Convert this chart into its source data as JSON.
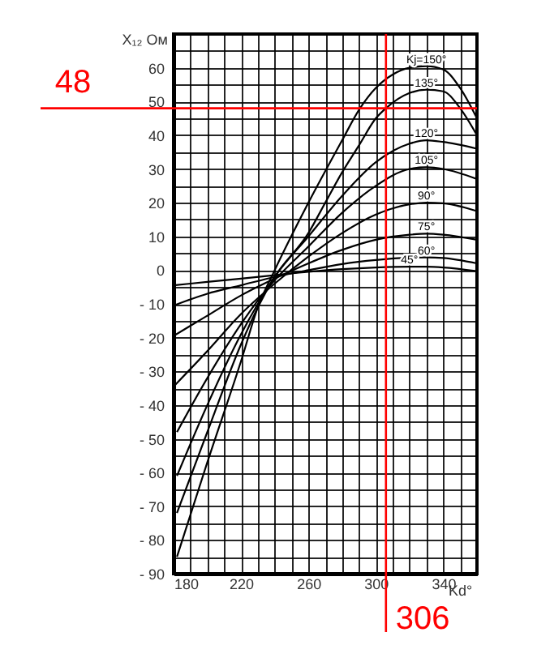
{
  "chart_data": {
    "type": "line",
    "xlabel": "Kd°",
    "ylabel": "X₁₂ Ом",
    "xlim": [
      180,
      360
    ],
    "ylim": [
      -90,
      70
    ],
    "xticks": [
      180,
      {
        "value": 190,
        "label": null
      },
      {
        "value": 200,
        "label": null
      },
      {
        "value": 210,
        "label": null
      },
      220,
      {
        "value": 230,
        "label": null
      },
      {
        "value": 240,
        "label": null
      },
      {
        "value": 250,
        "label": null
      },
      260,
      {
        "value": 270,
        "label": null
      },
      {
        "value": 280,
        "label": null
      },
      {
        "value": 290,
        "label": null
      },
      300,
      {
        "value": 310,
        "label": null
      },
      {
        "value": 320,
        "label": null
      },
      {
        "value": 330,
        "label": null
      },
      340,
      {
        "value": 350,
        "label": null
      },
      {
        "value": 360,
        "label": null
      }
    ],
    "yticks": [
      {
        "value": -90,
        "label": "- 90"
      },
      {
        "value": -85,
        "label": null
      },
      {
        "value": -80,
        "label": "- 80"
      },
      {
        "value": -75,
        "label": null
      },
      {
        "value": -70,
        "label": "- 70"
      },
      {
        "value": -65,
        "label": null
      },
      {
        "value": -60,
        "label": "- 60"
      },
      {
        "value": -55,
        "label": null
      },
      {
        "value": -50,
        "label": "- 50"
      },
      {
        "value": -45,
        "label": null
      },
      {
        "value": -40,
        "label": "- 40"
      },
      {
        "value": -35,
        "label": null
      },
      {
        "value": -30,
        "label": "- 30"
      },
      {
        "value": -25,
        "label": null
      },
      {
        "value": -20,
        "label": "- 20"
      },
      {
        "value": -15,
        "label": null
      },
      {
        "value": -10,
        "label": "- 10"
      },
      {
        "value": -5,
        "label": null
      },
      0,
      {
        "value": 5,
        "label": null
      },
      10,
      {
        "value": 15,
        "label": null
      },
      20,
      {
        "value": 25,
        "label": null
      },
      30,
      {
        "value": 35,
        "label": null
      },
      40,
      {
        "value": 45,
        "label": null
      },
      50,
      {
        "value": 55,
        "label": null
      },
      60,
      {
        "value": 65,
        "label": null
      },
      {
        "value": 70,
        "label": null
      }
    ],
    "grid": true,
    "series": [
      {
        "name": "Kj=150°",
        "color": "#000000",
        "x": [
          182,
          200,
          220,
          230,
          240,
          260,
          280,
          290,
          300,
          310,
          320,
          330,
          340,
          350,
          360
        ],
        "values": [
          -85,
          -57,
          -27,
          -11,
          0,
          20,
          38.5,
          47.5,
          54,
          58,
          60,
          60.5,
          59.5,
          54,
          45
        ]
      },
      {
        "name": "135°",
        "color": "#000000",
        "x": [
          182,
          200,
          220,
          230,
          240,
          260,
          270,
          280,
          290,
          300,
          306,
          320,
          330,
          340,
          350,
          360
        ],
        "values": [
          -72,
          -48,
          -22,
          -11,
          -2,
          11,
          20,
          29,
          37,
          45,
          48,
          52.5,
          53.5,
          53,
          48,
          40
        ]
      },
      {
        "name": "120°",
        "color": "#000000",
        "x": [
          182,
          200,
          220,
          230,
          240,
          260,
          280,
          300,
          320,
          330,
          340,
          360
        ],
        "values": [
          -61,
          -40,
          -19,
          -10,
          -2,
          10,
          22,
          32,
          37.5,
          38.5,
          38,
          36
        ]
      },
      {
        "name": "105°",
        "color": "#000000",
        "x": [
          182,
          200,
          220,
          230,
          240,
          260,
          280,
          300,
          320,
          330,
          340,
          360
        ],
        "values": [
          -48,
          -32,
          -16,
          -9,
          -3,
          7,
          17,
          25,
          30,
          30.5,
          30,
          27
        ]
      },
      {
        "name": "90°",
        "color": "#000000",
        "x": [
          180,
          200,
          220,
          240,
          260,
          280,
          300,
          320,
          330,
          340,
          360
        ],
        "values": [
          -34.5,
          -24,
          -13,
          -4,
          4,
          11,
          16.5,
          19.5,
          20,
          19.8,
          17.5
        ]
      },
      {
        "name": "75°",
        "color": "#000000",
        "x": [
          180,
          200,
          220,
          240,
          260,
          280,
          300,
          320,
          330,
          340,
          360
        ],
        "values": [
          -19.5,
          -13.5,
          -7.5,
          -2.5,
          2,
          6,
          9,
          10.5,
          10.8,
          10.5,
          9
        ]
      },
      {
        "name": "60°",
        "color": "#000000",
        "x": [
          180,
          200,
          220,
          240,
          260,
          280,
          300,
          320,
          330,
          340,
          360
        ],
        "values": [
          -10.5,
          -7,
          -4.5,
          -2,
          0,
          1.8,
          3,
          3.7,
          3.8,
          3.6,
          2
        ]
      },
      {
        "name": "45°",
        "color": "#000000",
        "x": [
          180,
          200,
          220,
          240,
          260,
          280,
          300,
          320,
          330,
          340,
          360
        ],
        "values": [
          -4.5,
          -3.5,
          -2.5,
          -1.5,
          -0.5,
          0.3,
          0.8,
          1,
          1,
          0.8,
          -0.3
        ]
      }
    ],
    "ref_lines": [
      {
        "axis": "y",
        "value": 48,
        "label": "48",
        "color": "#ff0000"
      },
      {
        "axis": "x",
        "value": 306,
        "label": "306",
        "color": "#ff0000"
      }
    ]
  }
}
